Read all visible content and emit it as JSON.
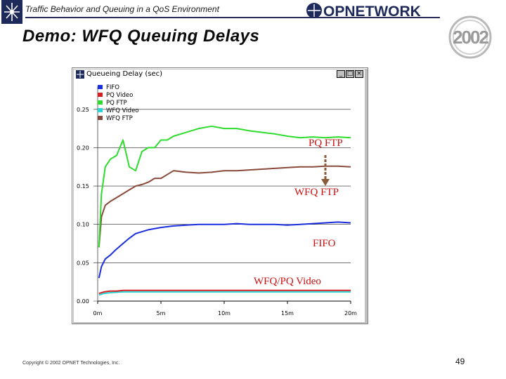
{
  "header": {
    "subtitle": "Traffic Behavior and Queuing in a QoS Environment",
    "brand": "OPNETWORK",
    "badge_year": "2002"
  },
  "slide": {
    "title": "Demo:  WFQ Queuing Delays"
  },
  "window": {
    "title": "Queueing Delay (sec)",
    "controls": {
      "minimize": "_",
      "maximize": "□",
      "close": "×"
    }
  },
  "chart_data": {
    "type": "line",
    "xlim": [
      0,
      20
    ],
    "ylim": [
      0,
      0.28
    ],
    "x_ticks": [
      0,
      5,
      10,
      15,
      20
    ],
    "x_tick_labels": [
      "0m",
      "5m",
      "10m",
      "15m",
      "20m"
    ],
    "y_ticks": [
      0,
      0.05,
      0.1,
      0.15,
      0.2,
      0.25
    ],
    "y_tick_labels": [
      "0.00",
      "0.05",
      "0.10",
      "0.15",
      "0.20",
      "0.25"
    ],
    "grid": true,
    "legend_position": "top-left",
    "series": [
      {
        "name": "FIFO",
        "color": "#1a2ee0",
        "x": [
          0.1,
          0.3,
          0.6,
          1,
          1.5,
          2,
          2.5,
          3,
          4,
          5,
          6,
          7,
          8,
          9,
          10,
          11,
          12,
          13,
          14,
          15,
          16,
          17,
          18,
          19,
          20
        ],
        "y": [
          0.03,
          0.045,
          0.055,
          0.06,
          0.068,
          0.075,
          0.082,
          0.088,
          0.093,
          0.096,
          0.098,
          0.099,
          0.1,
          0.1,
          0.1,
          0.101,
          0.1,
          0.1,
          0.1,
          0.099,
          0.1,
          0.101,
          0.102,
          0.103,
          0.102
        ]
      },
      {
        "name": "PQ Video",
        "color": "#d42020",
        "x": [
          0.1,
          0.5,
          1,
          1.5,
          2,
          3,
          4,
          5,
          6,
          7,
          8,
          9,
          10,
          11,
          12,
          13,
          14,
          15,
          16,
          17,
          18,
          19,
          20
        ],
        "y": [
          0.01,
          0.012,
          0.013,
          0.013,
          0.014,
          0.014,
          0.014,
          0.014,
          0.014,
          0.014,
          0.014,
          0.014,
          0.014,
          0.014,
          0.014,
          0.014,
          0.014,
          0.014,
          0.014,
          0.014,
          0.014,
          0.014,
          0.014
        ]
      },
      {
        "name": "PQ FTP",
        "color": "#2edc2e",
        "x": [
          0.1,
          0.3,
          0.6,
          1,
          1.5,
          2,
          2.5,
          3,
          3.5,
          4,
          4.5,
          5,
          5.5,
          6,
          7,
          8,
          9,
          10,
          11,
          12,
          13,
          14,
          15,
          16,
          17,
          18,
          19,
          20
        ],
        "y": [
          0.07,
          0.14,
          0.175,
          0.185,
          0.19,
          0.21,
          0.175,
          0.17,
          0.195,
          0.2,
          0.2,
          0.21,
          0.21,
          0.215,
          0.22,
          0.225,
          0.228,
          0.225,
          0.225,
          0.222,
          0.22,
          0.218,
          0.215,
          0.213,
          0.214,
          0.213,
          0.214,
          0.213
        ]
      },
      {
        "name": "WFQ Video",
        "color": "#28d4d4",
        "x": [
          0.1,
          0.5,
          1,
          2,
          3,
          4,
          5,
          6,
          7,
          8,
          9,
          10,
          11,
          12,
          13,
          14,
          15,
          16,
          17,
          18,
          19,
          20
        ],
        "y": [
          0.008,
          0.01,
          0.011,
          0.012,
          0.012,
          0.012,
          0.012,
          0.012,
          0.012,
          0.012,
          0.012,
          0.012,
          0.012,
          0.012,
          0.012,
          0.012,
          0.012,
          0.012,
          0.012,
          0.012,
          0.012,
          0.012
        ]
      },
      {
        "name": "WFQ FTP",
        "color": "#8a4a3a",
        "x": [
          0.1,
          0.3,
          0.6,
          1,
          1.5,
          2,
          2.5,
          3,
          3.5,
          4,
          4.5,
          5,
          5.5,
          6,
          7,
          8,
          9,
          10,
          11,
          12,
          13,
          14,
          15,
          16,
          17,
          18,
          19,
          20
        ],
        "y": [
          0.07,
          0.11,
          0.125,
          0.13,
          0.135,
          0.14,
          0.145,
          0.15,
          0.152,
          0.155,
          0.16,
          0.16,
          0.165,
          0.17,
          0.168,
          0.167,
          0.168,
          0.17,
          0.17,
          0.171,
          0.172,
          0.173,
          0.174,
          0.175,
          0.175,
          0.176,
          0.176,
          0.175
        ]
      }
    ],
    "annotations": [
      {
        "text": "PQ FTP",
        "color": "#cc1010"
      },
      {
        "text": "WFQ FTP",
        "color": "#cc1010"
      },
      {
        "text": "FIFO",
        "color": "#cc1010"
      },
      {
        "text": "WFQ/PQ Video",
        "color": "#cc1010"
      }
    ],
    "arrow_color": "#8a5a3a"
  },
  "footer": {
    "copyright": "Copyright © 2002 OPNET Technologies, Inc.",
    "page_number": "49"
  }
}
